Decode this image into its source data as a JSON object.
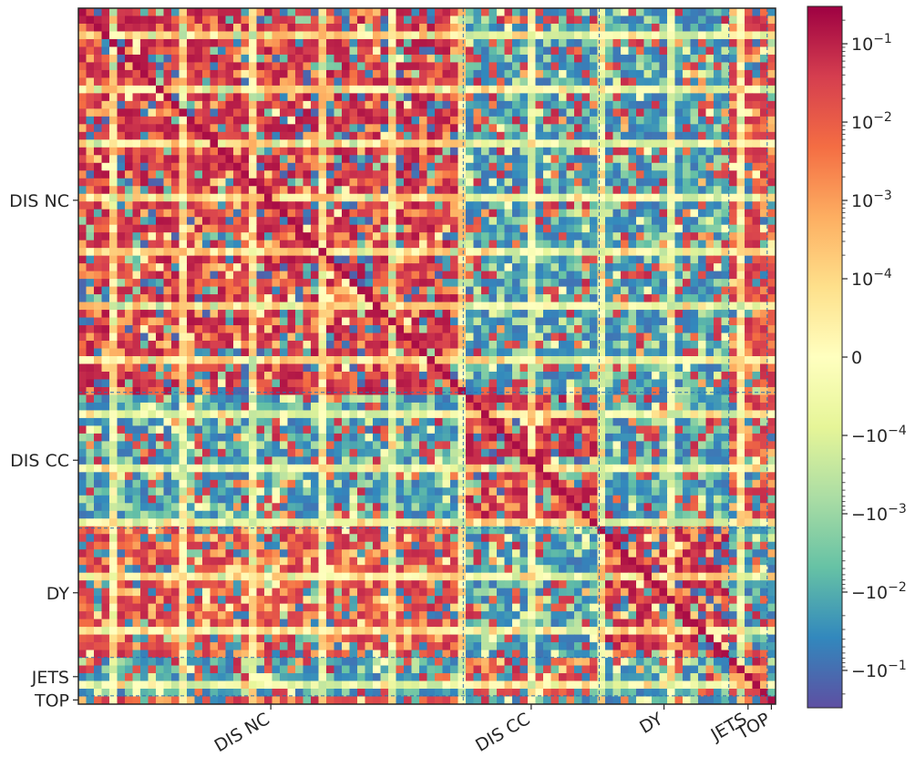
{
  "chart_data": {
    "type": "heatmap",
    "title": "",
    "xlabel": "",
    "ylabel": "",
    "colormap": "Spectral_r",
    "color_scale": "symlog",
    "datasets": [
      {
        "name": "DIS NC",
        "start": 0,
        "end": 0.552
      },
      {
        "name": "DIS CC",
        "start": 0.552,
        "end": 0.747
      },
      {
        "name": "DY",
        "start": 0.747,
        "end": 0.933
      },
      {
        "name": "JETS",
        "start": 0.933,
        "end": 0.988
      },
      {
        "name": "TOP",
        "start": 0.988,
        "end": 1.0
      }
    ],
    "x_tick_labels": [
      "DIS NC",
      "DIS CC",
      "DY",
      "JETS",
      "TOP"
    ],
    "y_tick_labels": [
      "DIS NC",
      "DIS CC",
      "DY",
      "JETS",
      "TOP"
    ],
    "colorbar": {
      "tick_labels": [
        {
          "label": "10^-1",
          "value": 0.1
        },
        {
          "label": "10^-2",
          "value": 0.01
        },
        {
          "label": "10^-3",
          "value": 0.001
        },
        {
          "label": "10^-4",
          "value": 0.0001
        },
        {
          "label": "0",
          "value": 0
        },
        {
          "label": "−10^-4",
          "value": -0.0001
        },
        {
          "label": "−10^-3",
          "value": -0.001
        },
        {
          "label": "−10^-2",
          "value": -0.01
        },
        {
          "label": "−10^-1",
          "value": -0.1
        }
      ],
      "range": [
        -0.3,
        0.3
      ],
      "linthresh": 0.0001,
      "colors": [
        "#5e4fa2",
        "#3288bd",
        "#66c2a5",
        "#abdda4",
        "#e6f598",
        "#ffffbf",
        "#fee08b",
        "#fdae61",
        "#f46d43",
        "#d53e4f",
        "#9e0142"
      ]
    },
    "block_signs": [
      [
        1,
        -1,
        -1,
        1,
        1
      ],
      [
        -1,
        1,
        -1,
        1,
        1
      ],
      [
        1,
        -1,
        1,
        -1,
        -1
      ],
      [
        -1,
        1,
        -1,
        1,
        -1
      ],
      [
        1,
        -1,
        -1,
        1,
        1
      ]
    ]
  }
}
